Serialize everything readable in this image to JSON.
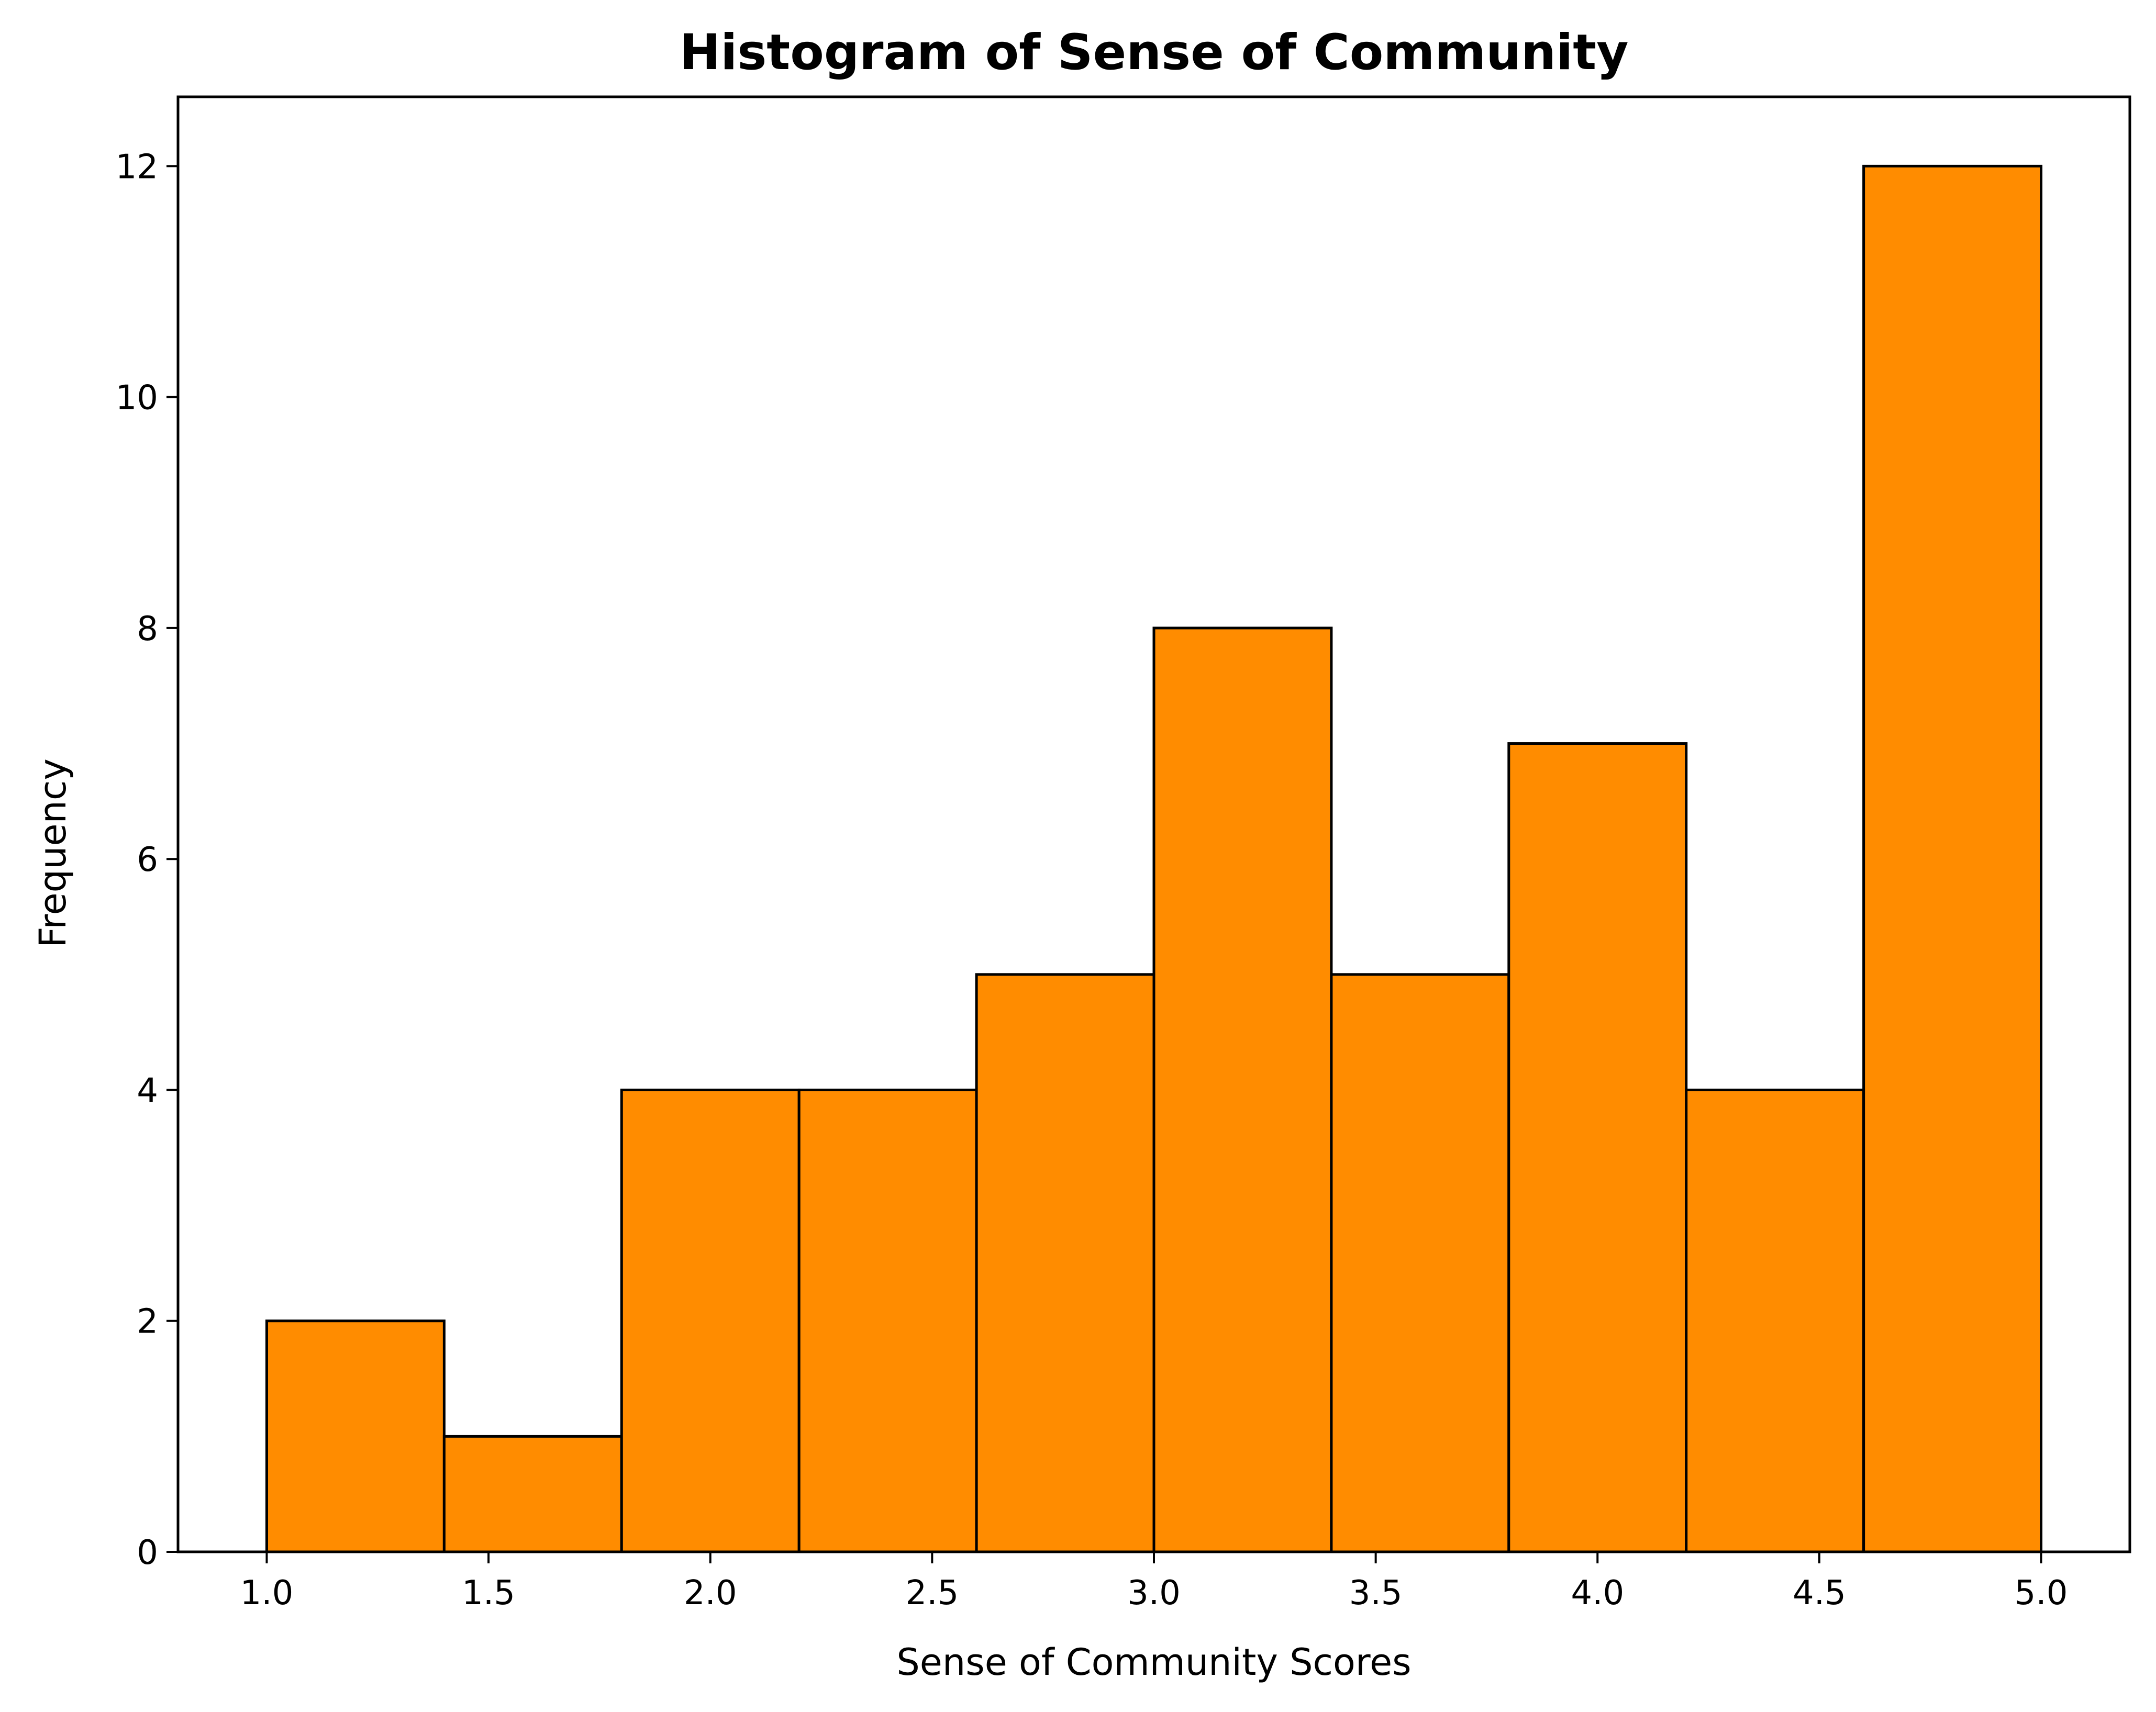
{
  "chart_data": {
    "type": "bar",
    "subtype": "histogram",
    "title": "Histogram of Sense of Community",
    "xlabel": "Sense of Community Scores",
    "ylabel": "Frequency",
    "bin_edges": [
      1.0,
      1.4,
      1.8,
      2.2,
      2.6,
      3.0,
      3.4,
      3.8,
      4.2,
      4.6,
      5.0
    ],
    "values": [
      2,
      1,
      4,
      4,
      5,
      8,
      5,
      7,
      4,
      12
    ],
    "xlim": [
      0.8,
      5.2
    ],
    "ylim": [
      0,
      12.6
    ],
    "xticks": [
      "1.0",
      "1.5",
      "2.0",
      "2.5",
      "3.0",
      "3.5",
      "4.0",
      "4.5",
      "5.0"
    ],
    "yticks": [
      "0",
      "2",
      "4",
      "6",
      "8",
      "10",
      "12"
    ],
    "bar_color": "#ff8c00",
    "edge_color": "#000000",
    "grid": false,
    "legend": "none"
  }
}
